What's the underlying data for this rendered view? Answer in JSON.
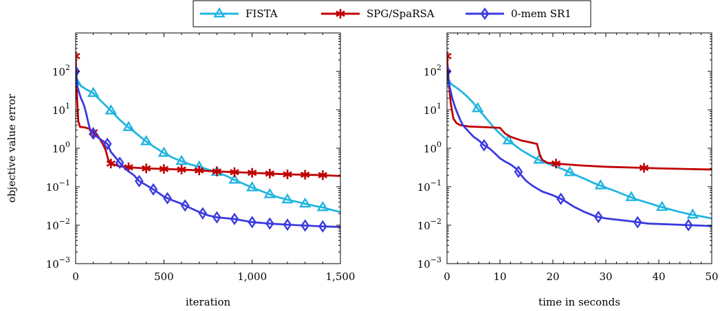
{
  "legend": {
    "placement": "top-center",
    "entries": [
      {
        "name": "FISTA",
        "color": "#21b5e0",
        "marker": "triangle"
      },
      {
        "name": "SPG/SpaRSA",
        "color": "#c00000",
        "marker": "star"
      },
      {
        "name": "0-mem SR1",
        "color": "#3a3ae0",
        "marker": "diamond"
      }
    ]
  },
  "chart_data": [
    {
      "type": "line",
      "xlabel": "iteration",
      "ylabel": "objective value error",
      "xlim": [
        0,
        1500
      ],
      "ylim": [
        0.001,
        1000
      ],
      "yscale": "log",
      "xticks": [
        0,
        500,
        1000,
        1500
      ],
      "xtick_labels": [
        "0",
        "500",
        "1,000",
        "1,500"
      ],
      "yticks": [
        0.001,
        0.01,
        0.1,
        1,
        10,
        100
      ],
      "ytick_labels": [
        [
          "10",
          "−3"
        ],
        [
          "10",
          "−2"
        ],
        [
          "10",
          "−1"
        ],
        [
          "10",
          "0"
        ],
        [
          "10",
          "1"
        ],
        [
          "10",
          "2"
        ]
      ],
      "grid": false,
      "series": [
        {
          "name": "FISTA",
          "color": "#21b5e0",
          "marker": "triangle",
          "x": [
            0,
            30,
            60,
            100,
            150,
            200,
            250,
            300,
            350,
            400,
            450,
            500,
            550,
            600,
            650,
            700,
            750,
            800,
            850,
            900,
            950,
            1000,
            1050,
            1100,
            1150,
            1200,
            1250,
            1300,
            1350,
            1400,
            1450,
            1500
          ],
          "y": [
            55,
            42,
            34,
            27,
            16,
            9.5,
            5.5,
            3.5,
            2.3,
            1.5,
            1.05,
            0.75,
            0.57,
            0.46,
            0.38,
            0.33,
            0.28,
            0.24,
            0.195,
            0.15,
            0.12,
            0.095,
            0.078,
            0.063,
            0.053,
            0.046,
            0.041,
            0.036,
            0.032,
            0.029,
            0.025,
            0.022
          ],
          "markers_x": [
            0,
            100,
            200,
            300,
            400,
            500,
            600,
            700,
            800,
            900,
            1000,
            1100,
            1200,
            1300,
            1400
          ]
        },
        {
          "name": "SPG/SpaRSA",
          "color": "#c00000",
          "marker": "star",
          "x": [
            0,
            8,
            15,
            25,
            50,
            80,
            100,
            120,
            150,
            170,
            185,
            200,
            250,
            300,
            400,
            500,
            600,
            700,
            800,
            900,
            1000,
            1100,
            1200,
            1300,
            1400,
            1500
          ],
          "y": [
            250,
            20,
            5,
            3.6,
            3.5,
            3.2,
            2.6,
            2.3,
            1.4,
            0.9,
            0.5,
            0.4,
            0.34,
            0.32,
            0.3,
            0.29,
            0.28,
            0.265,
            0.25,
            0.24,
            0.23,
            0.22,
            0.21,
            0.205,
            0.2,
            0.19
          ],
          "markers_x": [
            0,
            100,
            200,
            300,
            400,
            500,
            600,
            700,
            800,
            900,
            1000,
            1100,
            1200,
            1300,
            1400
          ]
        },
        {
          "name": "0-mem SR1",
          "color": "#3a3ae0",
          "marker": "diamond",
          "x": [
            0,
            10,
            20,
            30,
            40,
            50,
            60,
            70,
            80,
            100,
            120,
            150,
            180,
            200,
            230,
            250,
            280,
            300,
            330,
            360,
            400,
            450,
            500,
            550,
            600,
            650,
            700,
            750,
            800,
            900,
            1000,
            1100,
            1200,
            1300,
            1400,
            1500
          ],
          "y": [
            100,
            40,
            28,
            20,
            16,
            12,
            8,
            5,
            3.3,
            2.4,
            2.0,
            1.6,
            1.3,
            0.8,
            0.55,
            0.42,
            0.3,
            0.25,
            0.2,
            0.14,
            0.11,
            0.08,
            0.055,
            0.044,
            0.036,
            0.028,
            0.022,
            0.018,
            0.016,
            0.0145,
            0.012,
            0.011,
            0.0103,
            0.0098,
            0.0093,
            0.009
          ],
          "markers_x": [
            0,
            100,
            180,
            250,
            360,
            440,
            520,
            620,
            720,
            800,
            900,
            1000,
            1100,
            1200,
            1300,
            1400
          ]
        }
      ]
    },
    {
      "type": "line",
      "xlabel": "time in seconds",
      "ylabel": "",
      "xlim": [
        0,
        50
      ],
      "ylim": [
        0.001,
        1000
      ],
      "yscale": "log",
      "xticks": [
        0,
        10,
        20,
        30,
        40,
        50
      ],
      "xtick_labels": [
        "0",
        "10",
        "20",
        "30",
        "40",
        "50"
      ],
      "yticks": [
        0.001,
        0.01,
        0.1,
        1,
        10,
        100
      ],
      "ytick_labels": [
        [
          "10",
          "−3"
        ],
        [
          "10",
          "−2"
        ],
        [
          "10",
          "−1"
        ],
        [
          "10",
          "0"
        ],
        [
          "10",
          "1"
        ],
        [
          "10",
          "2"
        ]
      ],
      "grid": false,
      "series": [
        {
          "name": "FISTA",
          "color": "#21b5e0",
          "marker": "triangle",
          "x": [
            0,
            1,
            2,
            3,
            4,
            5,
            6,
            7,
            8,
            9,
            10,
            11,
            12,
            13,
            14,
            15,
            16,
            17,
            18,
            20,
            22,
            24,
            26,
            28,
            30,
            32,
            34,
            36,
            38,
            40,
            42,
            44,
            46,
            48,
            50
          ],
          "y": [
            55,
            45,
            36,
            28,
            21,
            15,
            10,
            7,
            4.8,
            3.3,
            2.4,
            1.8,
            1.45,
            1.15,
            0.9,
            0.75,
            0.62,
            0.53,
            0.45,
            0.36,
            0.28,
            0.21,
            0.16,
            0.12,
            0.095,
            0.075,
            0.058,
            0.046,
            0.038,
            0.031,
            0.026,
            0.022,
            0.019,
            0.017,
            0.015
          ],
          "markers_x": [
            0,
            5.8,
            11.6,
            17.4,
            23.2,
            29,
            34.8,
            40.6,
            46.4
          ]
        },
        {
          "name": "SPG/SpaRSA",
          "color": "#c00000",
          "marker": "star",
          "x": [
            0,
            0.3,
            0.7,
            1.2,
            1.8,
            2.5,
            4,
            6,
            8,
            10,
            11,
            12,
            14,
            16,
            17,
            17.5,
            18,
            19,
            20.6,
            25,
            30,
            37.2,
            40,
            45,
            50
          ],
          "y": [
            250,
            60,
            15,
            6,
            4.5,
            4,
            3.7,
            3.6,
            3.5,
            3.4,
            2.4,
            2.0,
            1.6,
            1.4,
            1.3,
            0.7,
            0.5,
            0.42,
            0.4,
            0.36,
            0.33,
            0.31,
            0.3,
            0.29,
            0.28
          ],
          "markers_x": [
            0,
            20.6,
            37.2
          ]
        },
        {
          "name": "0-mem SR1",
          "color": "#3a3ae0",
          "marker": "diamond",
          "x": [
            0,
            0.5,
            1,
            1.5,
            2,
            2.5,
            3,
            4,
            5,
            6,
            7,
            8,
            9,
            10,
            11,
            12,
            13,
            14,
            15,
            16,
            17,
            18,
            20,
            22,
            24,
            26,
            28,
            30,
            34,
            38,
            42,
            46,
            50
          ],
          "y": [
            100,
            40,
            20,
            12,
            8,
            5.5,
            4,
            2.8,
            2.0,
            1.6,
            1.2,
            1.0,
            0.75,
            0.55,
            0.45,
            0.38,
            0.3,
            0.2,
            0.14,
            0.11,
            0.09,
            0.075,
            0.06,
            0.045,
            0.03,
            0.022,
            0.017,
            0.015,
            0.013,
            0.011,
            0.0105,
            0.01,
            0.0095
          ],
          "markers_x": [
            0,
            7,
            13.5,
            21.5,
            28.6,
            36,
            45.6
          ]
        }
      ]
    }
  ]
}
